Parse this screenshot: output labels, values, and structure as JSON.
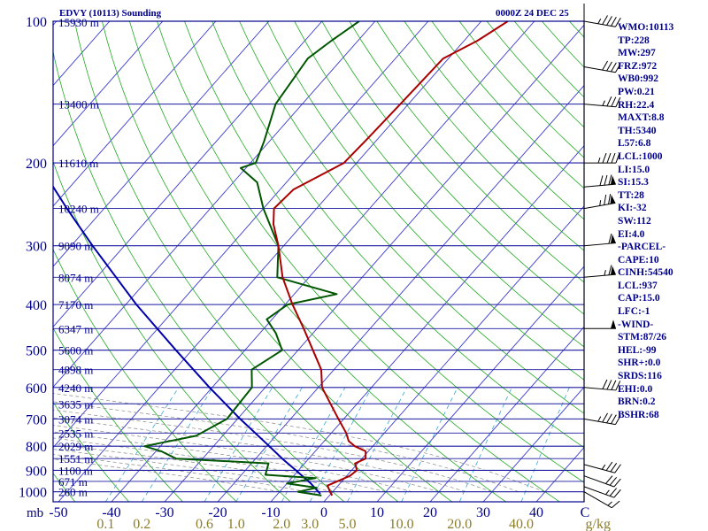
{
  "header": {
    "station": "EDVY (10113) Sounding",
    "time": "0000Z 24 DEC 25"
  },
  "indices": [
    "WMO:10113",
    "TP:228",
    "MW:297",
    "FRZ:972",
    "WB0:992",
    "PW:0.21",
    "RH:22.4",
    "MAXT:8.8",
    "TH:5340",
    "L57:6.8",
    "LCL:1000",
    "LI:15.0",
    "SI:15.3",
    "TT:28",
    "KI:-32",
    "SW:112",
    "EI:4.0",
    "-PARCEL-",
    "CAPE:10",
    "CINH:54540",
    "LCL:937",
    "CAP:15.0",
    "LFC:-1",
    "-WIND-",
    "STM:87/26",
    "HEL:-99",
    "SHR+:0.0",
    "SRDS:116",
    "EHI:0.0",
    "BRN:0.2",
    "BSHR:68"
  ],
  "colors": {
    "frame": "#00008b",
    "isobar": "#1a1aa0",
    "isotherm": "#3a3ad0",
    "dry_adiabat": "#22aa22",
    "moist_adiabat": "#888888",
    "mixing_ratio": "#3aa6d6",
    "temperature": "#aa0000",
    "dewpoint": "#005500",
    "parcel": "#0000aa",
    "mixing_label": "#8b7d2a",
    "wind": "#000000"
  },
  "chart_data": {
    "type": "skew-t",
    "pressure_unit": "mb",
    "mixing_ratio_unit": "g/kg",
    "pressure_levels": [
      100,
      200,
      300,
      400,
      500,
      600,
      700,
      800,
      900,
      1000
    ],
    "temperature_ticks": [
      -50,
      -40,
      -30,
      -20,
      -10,
      0,
      10,
      20,
      30,
      40
    ],
    "temperature_tick_labels": [
      "-50",
      "-40",
      "-30",
      "-20",
      "-10",
      "0",
      "10",
      "20",
      "30",
      "40"
    ],
    "temperature_edge_label": "C",
    "mixing_ratio_labels": [
      "0.1",
      "0.2",
      "0.6",
      "1.0",
      "2.0",
      "3.0",
      "5.0",
      "10.0",
      "20.0",
      "40.0"
    ],
    "height_labels": [
      {
        "p": 100,
        "label": "15930 m"
      },
      {
        "p": 150,
        "label": "13400 m"
      },
      {
        "p": 200,
        "label": "11610 m"
      },
      {
        "p": 250,
        "label": "10240 m"
      },
      {
        "p": 300,
        "label": "9090 m"
      },
      {
        "p": 350,
        "label": "8074 m"
      },
      {
        "p": 400,
        "label": "7170 m"
      },
      {
        "p": 450,
        "label": "6347 m"
      },
      {
        "p": 500,
        "label": "5600 m"
      },
      {
        "p": 550,
        "label": "4898 m"
      },
      {
        "p": 600,
        "label": "4240 m"
      },
      {
        "p": 650,
        "label": "3635 m"
      },
      {
        "p": 700,
        "label": "3074 m"
      },
      {
        "p": 750,
        "label": "2535 m"
      },
      {
        "p": 800,
        "label": "2029 m"
      },
      {
        "p": 850,
        "label": "1551 m"
      },
      {
        "p": 900,
        "label": "1100 m"
      },
      {
        "p": 950,
        "label": "671 m"
      },
      {
        "p": 1000,
        "label": "260 m"
      }
    ],
    "temperature_profile": [
      {
        "p": 1018,
        "t": 0.5
      },
      {
        "p": 1000,
        "t": -0.5
      },
      {
        "p": 970,
        "t": -2.0
      },
      {
        "p": 925,
        "t": 0.6
      },
      {
        "p": 900,
        "t": 1.0
      },
      {
        "p": 870,
        "t": -0.5
      },
      {
        "p": 850,
        "t": 0.7
      },
      {
        "p": 820,
        "t": -0.5
      },
      {
        "p": 800,
        "t": -3.4
      },
      {
        "p": 780,
        "t": -5.4
      },
      {
        "p": 750,
        "t": -7.2
      },
      {
        "p": 700,
        "t": -11.0
      },
      {
        "p": 650,
        "t": -15.0
      },
      {
        "p": 600,
        "t": -19.3
      },
      {
        "p": 550,
        "t": -22.4
      },
      {
        "p": 500,
        "t": -27.2
      },
      {
        "p": 450,
        "t": -32.5
      },
      {
        "p": 400,
        "t": -38.6
      },
      {
        "p": 350,
        "t": -45.0
      },
      {
        "p": 300,
        "t": -51.0
      },
      {
        "p": 270,
        "t": -55.5
      },
      {
        "p": 250,
        "t": -58.0
      },
      {
        "p": 228,
        "t": -57.5
      },
      {
        "p": 200,
        "t": -52.4
      },
      {
        "p": 180,
        "t": -52.0
      },
      {
        "p": 150,
        "t": -51.5
      },
      {
        "p": 120,
        "t": -51.0
      },
      {
        "p": 110,
        "t": -47.5
      },
      {
        "p": 100,
        "t": -45.0
      }
    ],
    "dewpoint_profile": [
      {
        "p": 1018,
        "t": -1.5
      },
      {
        "p": 1000,
        "t": -6.5
      },
      {
        "p": 980,
        "t": -3.7
      },
      {
        "p": 960,
        "t": -10.0
      },
      {
        "p": 935,
        "t": -5.5
      },
      {
        "p": 920,
        "t": -15.5
      },
      {
        "p": 900,
        "t": -16.0
      },
      {
        "p": 870,
        "t": -16.8
      },
      {
        "p": 850,
        "t": -35.0
      },
      {
        "p": 820,
        "t": -39.0
      },
      {
        "p": 800,
        "t": -43.0
      },
      {
        "p": 760,
        "t": -35.0
      },
      {
        "p": 700,
        "t": -32.0
      },
      {
        "p": 600,
        "t": -32.5
      },
      {
        "p": 550,
        "t": -35.5
      },
      {
        "p": 500,
        "t": -33.0
      },
      {
        "p": 460,
        "t": -37.0
      },
      {
        "p": 430,
        "t": -41.0
      },
      {
        "p": 400,
        "t": -39.5
      },
      {
        "p": 380,
        "t": -32.0
      },
      {
        "p": 350,
        "t": -46.0
      },
      {
        "p": 300,
        "t": -51.0
      },
      {
        "p": 250,
        "t": -60.0
      },
      {
        "p": 220,
        "t": -65.5
      },
      {
        "p": 205,
        "t": -71.0
      },
      {
        "p": 200,
        "t": -69.0
      },
      {
        "p": 180,
        "t": -71.0
      },
      {
        "p": 150,
        "t": -75.0
      },
      {
        "p": 120,
        "t": -76.5
      },
      {
        "p": 110,
        "t": -75.0
      },
      {
        "p": 100,
        "t": -73.0
      }
    ],
    "parcel_profile": [
      {
        "p": 1010,
        "t": -2.0
      },
      {
        "p": 960,
        "t": -5.5
      },
      {
        "p": 900,
        "t": -10.5
      },
      {
        "p": 850,
        "t": -15.0
      },
      {
        "p": 800,
        "t": -19.5
      },
      {
        "p": 700,
        "t": -29.5
      },
      {
        "p": 600,
        "t": -40.5
      },
      {
        "p": 500,
        "t": -53.0
      },
      {
        "p": 400,
        "t": -68.0
      },
      {
        "p": 300,
        "t": -86.0
      },
      {
        "p": 250,
        "t": -97.0
      },
      {
        "p": 200,
        "t": -110.0
      },
      {
        "p": 150,
        "t": -125.0
      },
      {
        "p": 100,
        "t": -145.0
      }
    ],
    "wind_barbs": [
      {
        "p": 1000,
        "dir": 300,
        "kt": 15
      },
      {
        "p": 975,
        "dir": 290,
        "kt": 25
      },
      {
        "p": 925,
        "dir": 290,
        "kt": 30
      },
      {
        "p": 875,
        "dir": 285,
        "kt": 35
      },
      {
        "p": 700,
        "dir": 280,
        "kt": 45
      },
      {
        "p": 600,
        "dir": 275,
        "kt": 40
      },
      {
        "p": 450,
        "dir": 270,
        "kt": 50
      },
      {
        "p": 350,
        "dir": 265,
        "kt": 65
      },
      {
        "p": 300,
        "dir": 265,
        "kt": 60
      },
      {
        "p": 250,
        "dir": 260,
        "kt": 75
      },
      {
        "p": 225,
        "dir": 265,
        "kt": 80
      },
      {
        "p": 200,
        "dir": 270,
        "kt": 45
      },
      {
        "p": 150,
        "dir": 275,
        "kt": 35
      },
      {
        "p": 125,
        "dir": 280,
        "kt": 40
      },
      {
        "p": 100,
        "dir": 280,
        "kt": 45
      }
    ]
  }
}
